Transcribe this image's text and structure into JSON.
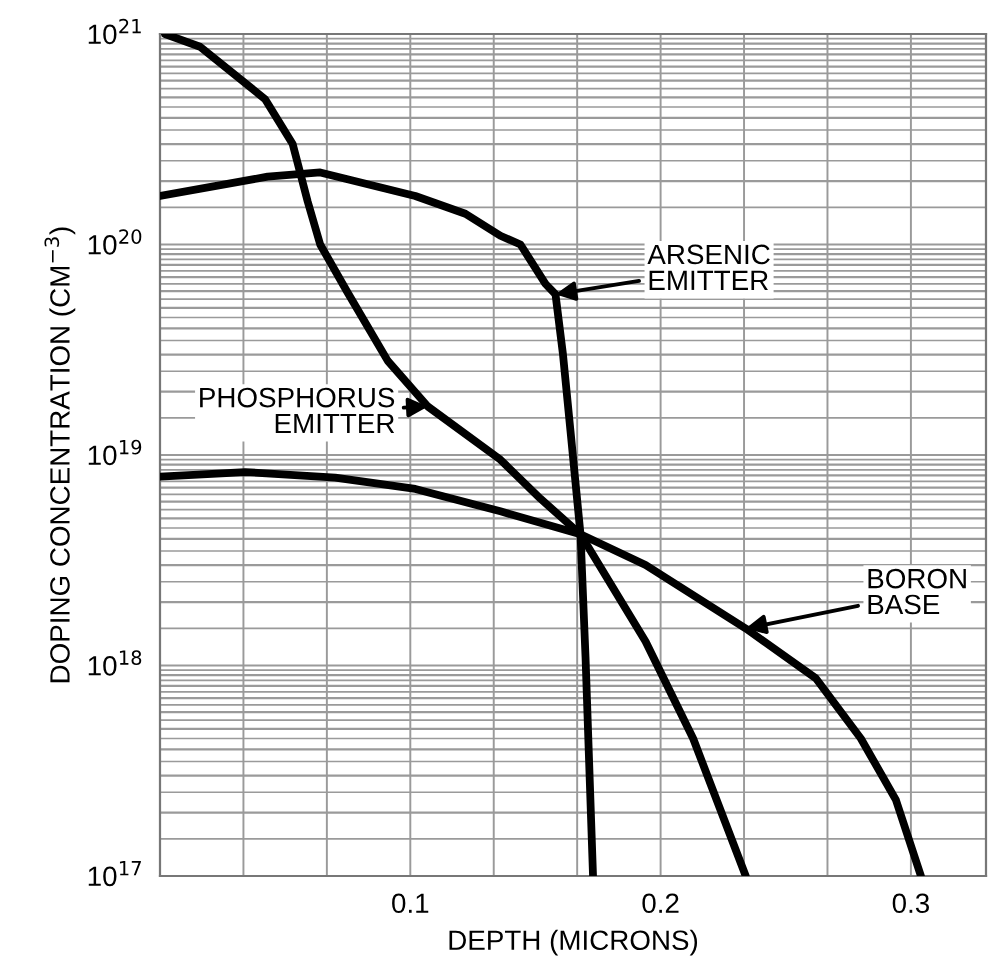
{
  "chart_data": {
    "type": "line",
    "xlabel": "DEPTH (MICRONS)",
    "ylabel": "DOPING CONCENTRATION (CM$^{−3}$)",
    "log": "y",
    "grid": true,
    "marker": "none",
    "line_style": "solid",
    "xlim": [
      0,
      0.33
    ],
    "ylim": [
      1e+17,
      1e+21
    ],
    "xticks": [
      0.1,
      0.2,
      0.3
    ],
    "yticks": [
      {
        "value": 1e+17,
        "label": "10$^{17}$"
      },
      {
        "value": 1e+18,
        "label": "10$^{18}$"
      },
      {
        "value": 1e+19,
        "label": "10$^{19}$"
      },
      {
        "value": 1e+20,
        "label": "10$^{20}$"
      },
      {
        "value": 1e+21,
        "label": "10$^{21}$"
      }
    ],
    "series": [
      {
        "name": "ARSENIC\nEMITTER",
        "color": "#000000",
        "x": [
          0,
          0.043,
          0.064,
          0.102,
          0.122,
          0.136,
          0.144,
          0.154,
          0.158,
          0.161,
          0.164,
          0.168,
          0.17,
          0.173
        ],
        "values": [
          1.7e+20,
          2.1e+20,
          2.2e+20,
          1.7e+20,
          1.4e+20,
          1.1e+20,
          1e+20,
          6.5e+19,
          5.8e+19,
          3e+19,
          1.3e+19,
          4.2e+18,
          1.1e+18,
          1e+17
        ]
      },
      {
        "name": "PHOSPHORUS\nEMITTER",
        "color": "#000000",
        "x": [
          0.002,
          0.016,
          0.042,
          0.053,
          0.059,
          0.064,
          0.075,
          0.091,
          0.107,
          0.136,
          0.152,
          0.168,
          0.194,
          0.213,
          0.234
        ],
        "values": [
          1e+21,
          8.7e+20,
          4.9e+20,
          3e+20,
          1.6e+20,
          1e+20,
          5.9e+19,
          2.8e+19,
          1.7e+19,
          9.5e+18,
          6.2e+18,
          4.2e+18,
          1.3e+18,
          4.5e+17,
          1e+17
        ]
      },
      {
        "name": "BORON\nBASE",
        "color": "#000000",
        "x": [
          0,
          0.034,
          0.07,
          0.102,
          0.136,
          0.168,
          0.194,
          0.234,
          0.262,
          0.28,
          0.294,
          0.304
        ],
        "values": [
          7.9e+18,
          8.3e+18,
          7.8e+18,
          6.9e+18,
          5.4e+18,
          4.2e+18,
          3e+18,
          1.5e+18,
          8.7e+17,
          4.5e+17,
          2.3e+17,
          1e+17
        ]
      }
    ]
  }
}
